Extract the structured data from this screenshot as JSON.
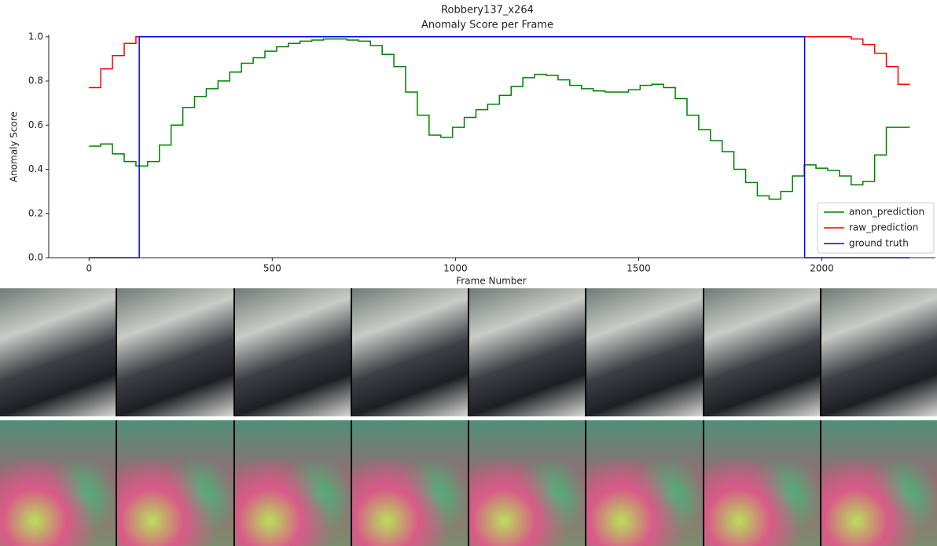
{
  "chart_data": {
    "type": "step-line",
    "title": "Robbery137_x264",
    "subtitle": "Anomaly Score per Frame",
    "x_label": "Frame Number",
    "y_label": "Anomaly Score",
    "x": [
      0,
      32,
      64,
      96,
      128,
      160,
      192,
      224,
      256,
      288,
      320,
      352,
      384,
      416,
      448,
      480,
      512,
      544,
      576,
      608,
      640,
      672,
      704,
      736,
      768,
      800,
      832,
      864,
      896,
      928,
      960,
      992,
      1024,
      1056,
      1088,
      1120,
      1152,
      1184,
      1216,
      1248,
      1280,
      1312,
      1344,
      1376,
      1408,
      1440,
      1472,
      1504,
      1536,
      1568,
      1600,
      1632,
      1664,
      1696,
      1728,
      1760,
      1792,
      1824,
      1856,
      1888,
      1920,
      1952,
      1984,
      2016,
      2048,
      2080,
      2112,
      2144,
      2176,
      2208,
      2240
    ],
    "series": [
      {
        "name": "anon_prediction",
        "color": "#008000",
        "values": [
          0.505,
          0.515,
          0.47,
          0.435,
          0.415,
          0.435,
          0.51,
          0.6,
          0.68,
          0.73,
          0.765,
          0.8,
          0.84,
          0.88,
          0.905,
          0.935,
          0.955,
          0.97,
          0.98,
          0.985,
          0.99,
          0.99,
          0.985,
          0.98,
          0.96,
          0.92,
          0.865,
          0.75,
          0.645,
          0.555,
          0.545,
          0.59,
          0.635,
          0.67,
          0.695,
          0.735,
          0.775,
          0.815,
          0.83,
          0.825,
          0.805,
          0.78,
          0.765,
          0.755,
          0.75,
          0.75,
          0.76,
          0.78,
          0.785,
          0.77,
          0.72,
          0.645,
          0.58,
          0.53,
          0.48,
          0.4,
          0.34,
          0.28,
          0.265,
          0.3,
          0.37,
          0.42,
          0.405,
          0.395,
          0.37,
          0.33,
          0.345,
          0.465,
          0.59,
          0.59,
          0.59
        ]
      },
      {
        "name": "raw_prediction",
        "color": "#ff0000",
        "values": [
          0.77,
          0.855,
          0.915,
          0.97,
          1,
          1,
          1,
          1,
          1,
          1,
          1,
          1,
          1,
          1,
          1,
          1,
          1,
          1,
          1,
          1,
          1,
          1,
          1,
          1,
          1,
          1,
          1,
          1,
          1,
          1,
          1,
          1,
          1,
          1,
          1,
          1,
          1,
          1,
          1,
          1,
          1,
          1,
          1,
          1,
          1,
          1,
          1,
          1,
          1,
          1,
          1,
          1,
          1,
          1,
          1,
          1,
          1,
          1,
          1,
          1,
          1,
          1,
          1,
          1,
          1,
          0.99,
          0.965,
          0.925,
          0.865,
          0.785,
          0.785
        ]
      },
      {
        "name": "ground truth",
        "color": "#0000ff",
        "x": [
          0,
          137,
          1953,
          2240
        ],
        "values": [
          0,
          1,
          0,
          0
        ]
      }
    ],
    "xlim": [
      -110,
      2310
    ],
    "ylim": [
      0,
      1.01
    ],
    "xticks": [
      0,
      500,
      1000,
      1500,
      2000
    ],
    "yticks": [
      {
        "value": 0,
        "label": "0.0"
      },
      {
        "value": 0.2,
        "label": "0.2"
      },
      {
        "value": 0.4,
        "label": "0.4"
      },
      {
        "value": 0.6,
        "label": "0.6"
      },
      {
        "value": 0.8,
        "label": "0.8"
      },
      {
        "value": 1,
        "label": "1.0"
      }
    ],
    "legend": "lower right",
    "grid": false
  }
}
